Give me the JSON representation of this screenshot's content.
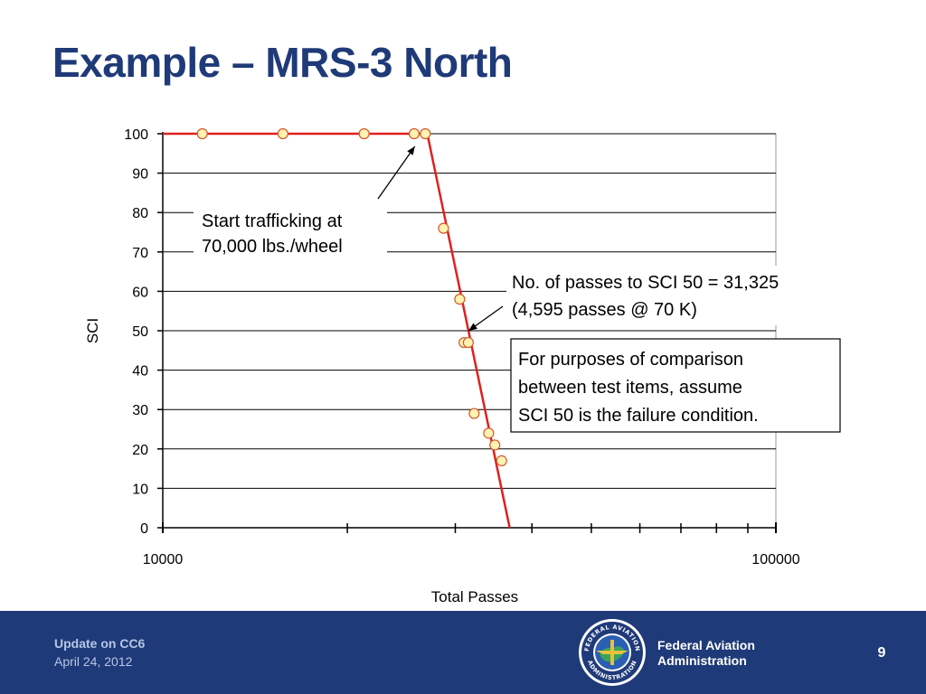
{
  "slide": {
    "title": "Example – MRS-3 North"
  },
  "chart_data": {
    "type": "scatter",
    "xlabel": "Total Passes",
    "ylabel": "SCI",
    "x_scale": "log",
    "xlim": [
      10000,
      100000
    ],
    "ylim": [
      0,
      100
    ],
    "x_ticks": [
      10000,
      100000
    ],
    "y_ticks": [
      0,
      10,
      20,
      30,
      40,
      50,
      60,
      70,
      80,
      90,
      100
    ],
    "grid": "horizontal",
    "series": [
      {
        "markers": "circle",
        "marker_color": "#fff2b3",
        "points": [
          [
            11600,
            100
          ],
          [
            15700,
            100
          ],
          [
            21300,
            100
          ],
          [
            25700,
            100
          ],
          [
            26800,
            100
          ],
          [
            28700,
            76
          ],
          [
            30500,
            58
          ],
          [
            31000,
            47
          ],
          [
            31500,
            47
          ],
          [
            32200,
            29
          ],
          [
            34000,
            24
          ],
          [
            34800,
            21
          ],
          [
            35700,
            17
          ]
        ]
      }
    ],
    "fit_line": {
      "color": "#e02020",
      "points": [
        [
          10000,
          100
        ],
        [
          27000,
          100
        ],
        [
          36800,
          0
        ]
      ]
    },
    "annotations": [
      {
        "text_lines": [
          "Start trafficking at",
          "70,000 lbs./wheel"
        ],
        "arrow_to": [
          26300,
          100
        ]
      },
      {
        "text_lines": [
          "No. of passes to SCI 50 = 31,325",
          "(4,595 passes @ 70 K)"
        ],
        "arrow_to": [
          31325,
          50
        ]
      },
      {
        "text_lines": [
          "For purposes of comparison",
          "between test items, assume",
          "SCI 50 is the failure condition."
        ],
        "boxed": true
      }
    ]
  },
  "footer": {
    "topic": "Update on CC6",
    "date": "April 24, 2012",
    "agency_line1": "Federal Aviation",
    "agency_line2": "Administration",
    "seal_text_top": "FEDERAL AVIATION",
    "seal_text_bottom": "ADMINISTRATION",
    "page_number": "9",
    "colors": {
      "background": "#1f3a78",
      "title": "#1f3a78"
    }
  }
}
